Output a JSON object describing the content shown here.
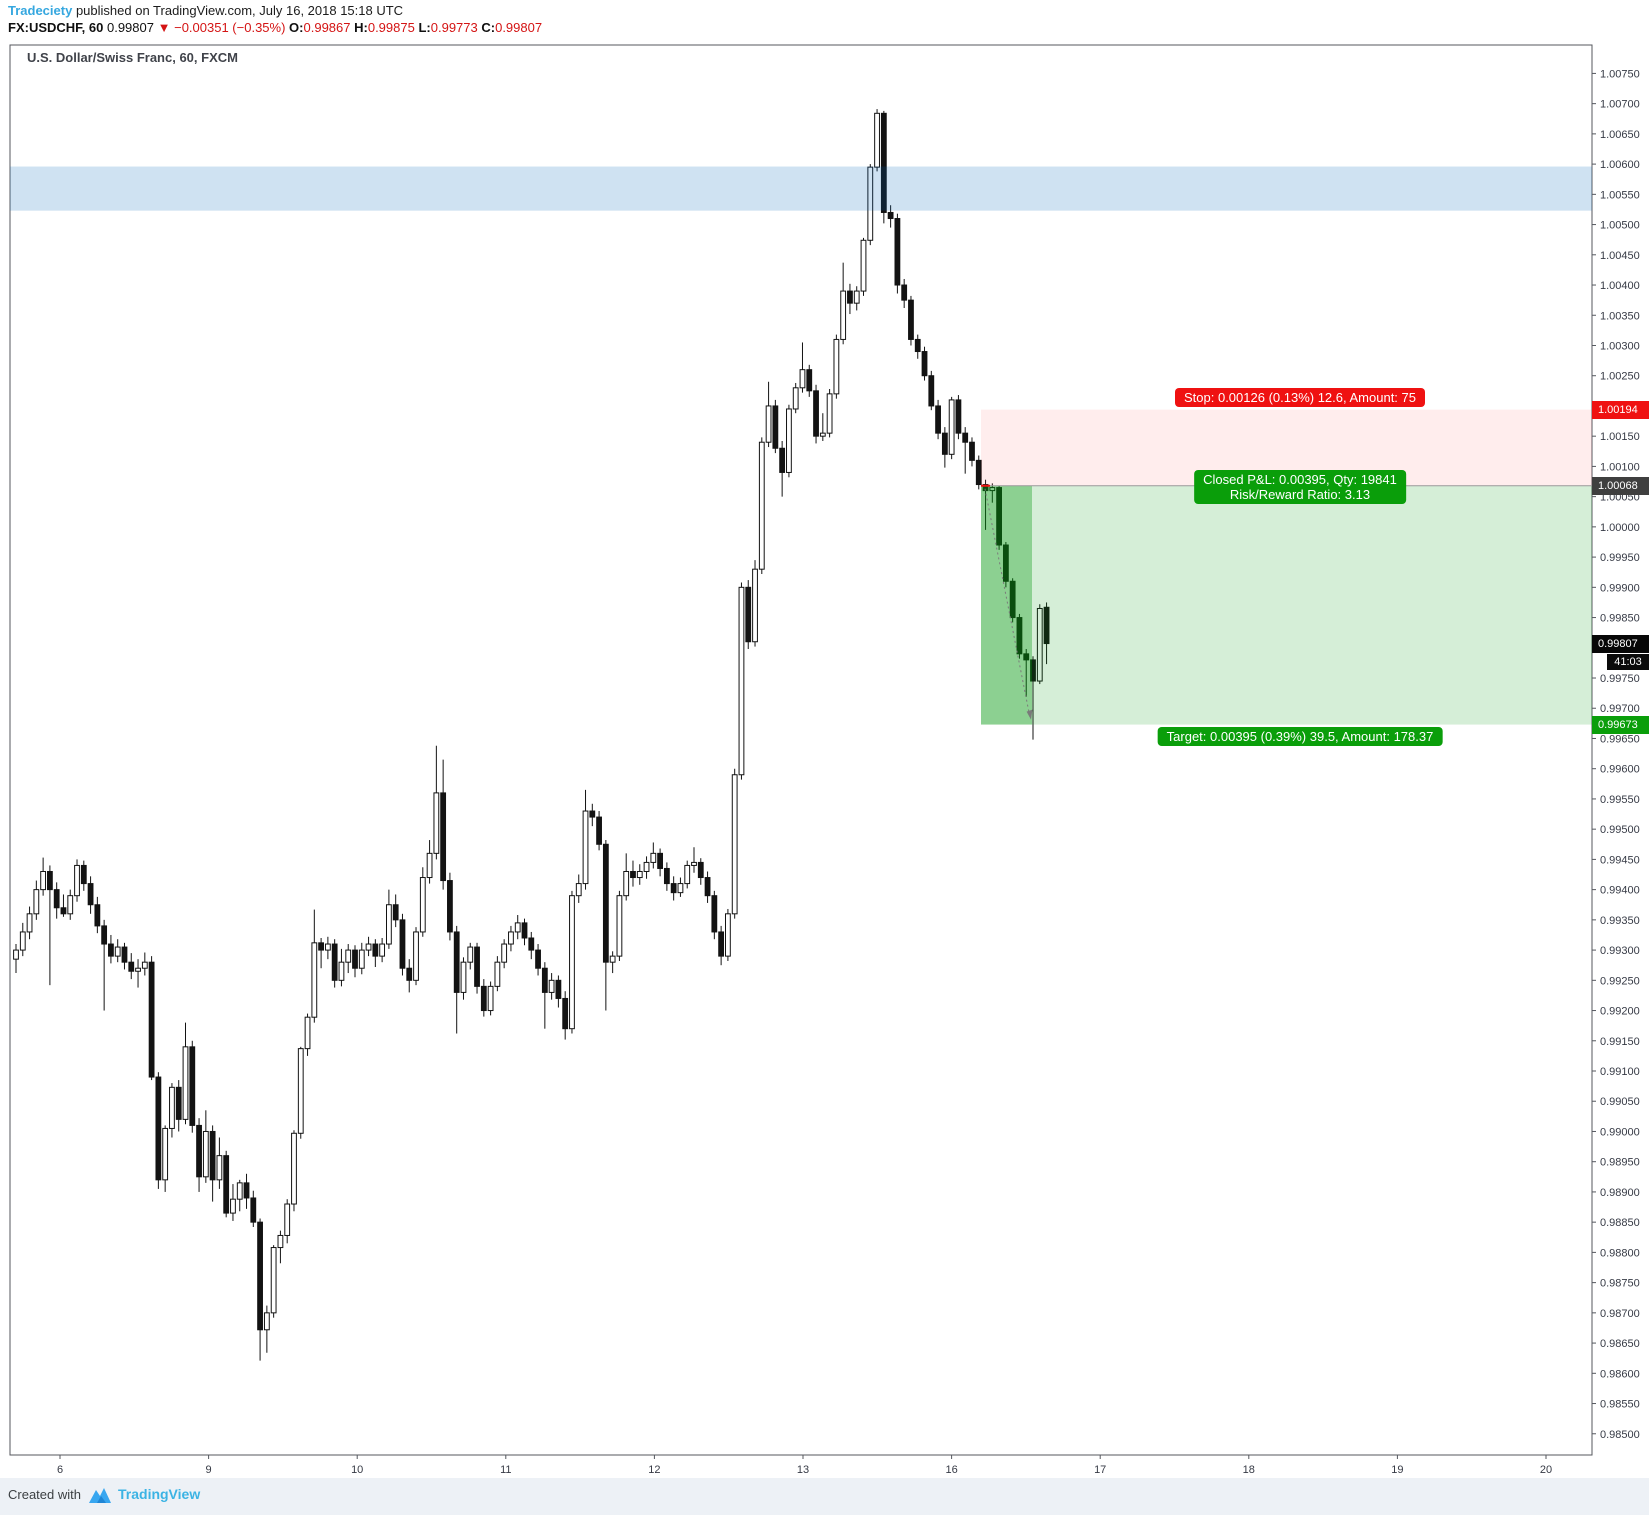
{
  "header": {
    "byline": {
      "author": "Tradeciety",
      "text": " published on TradingView.com, July 16, 2018 15:18 UTC"
    },
    "quote": {
      "symbol": "FX:USDCHF, 60",
      "last": "0.99807",
      "direction": "▼",
      "change": "−0.00351 (−0.35%)",
      "o_label": "O:",
      "o_value": "0.99867",
      "h_label": "H:",
      "h_value": "0.99875",
      "l_label": "L:",
      "l_value": "0.99773",
      "c_label": "C:",
      "c_value": "0.99807"
    }
  },
  "chart": {
    "title": "U.S. Dollar/Swiss Franc, 60, FXCM",
    "tags": {
      "stop": "1.00194",
      "entry": "1.00068",
      "last": "0.99807",
      "countdown": "41:03",
      "target": "0.99673"
    },
    "trade": {
      "stop_label": "Stop: 0.00126 (0.13%) 12.6, Amount: 75",
      "pnl_line1": "Closed P&L: 0.00395, Qty: 19841",
      "pnl_line2": "Risk/Reward Ratio: 3.13",
      "target_label": "Target: 0.00395 (0.39%) 39.5, Amount: 178.37",
      "stop_price": 1.00194,
      "entry_price": 1.00068,
      "target_price": 0.99673,
      "risk_reward_ratio": 3.13
    },
    "colors": {
      "stop_red": "#ef1111",
      "profit_green": "#0a9e0a",
      "stop_zone_fill": "rgba(255,60,60,0.09)",
      "profit_zone_light": "rgba(0,150,10,0.165)",
      "profit_zone_dark": "rgba(0,150,10,0.45)",
      "blue_band_fill": "rgba(0,102,187,0.19)",
      "up_candle": "#ffffff",
      "down_candle": "#131313",
      "axis_text": "#363a45"
    }
  },
  "footer": {
    "created_with": "Created with",
    "brand": "TradingView"
  },
  "chart_data": {
    "type": "candlestick",
    "title": "U.S. Dollar/Swiss Franc, 60, FXCM",
    "symbol": "USDCHF",
    "timeframe_minutes": 60,
    "y_axis": {
      "max": 1.0075,
      "min": 0.985,
      "step": 0.0005,
      "decimals": 5,
      "grid": false
    },
    "x_axis": {
      "day_labels": [
        "6",
        "9",
        "10",
        "11",
        "12",
        "13",
        "16",
        "17",
        "18",
        "19",
        "20"
      ]
    },
    "blue_band": {
      "top": 1.00596,
      "bottom": 1.00523
    },
    "trade_zones": {
      "stop_price": 1.00194,
      "entry_price": 1.00068,
      "target_price": 0.99673
    },
    "candles": [
      [
        0.99285,
        0.9931,
        0.99262,
        0.993
      ],
      [
        0.993,
        0.99345,
        0.9929,
        0.9933
      ],
      [
        0.9933,
        0.99372,
        0.99318,
        0.9936
      ],
      [
        0.9936,
        0.99415,
        0.9935,
        0.994
      ],
      [
        0.994,
        0.99453,
        0.9939,
        0.9943
      ],
      [
        0.9943,
        0.9944,
        0.99242,
        0.994
      ],
      [
        0.994,
        0.99412,
        0.99352,
        0.9937
      ],
      [
        0.9937,
        0.99392,
        0.99355,
        0.9936
      ],
      [
        0.9936,
        0.994,
        0.9935,
        0.9939
      ],
      [
        0.9939,
        0.9945,
        0.9938,
        0.9944
      ],
      [
        0.9944,
        0.99448,
        0.99398,
        0.9941
      ],
      [
        0.9941,
        0.99422,
        0.9936,
        0.99375
      ],
      [
        0.99375,
        0.99388,
        0.99328,
        0.9934
      ],
      [
        0.9934,
        0.9935,
        0.992,
        0.9931
      ],
      [
        0.9931,
        0.99325,
        0.99278,
        0.9929
      ],
      [
        0.9929,
        0.99318,
        0.9928,
        0.99305
      ],
      [
        0.99305,
        0.99312,
        0.99268,
        0.9928
      ],
      [
        0.9928,
        0.99295,
        0.99252,
        0.99265
      ],
      [
        0.99265,
        0.99285,
        0.99238,
        0.9927
      ],
      [
        0.9927,
        0.99296,
        0.99258,
        0.9928
      ],
      [
        0.9928,
        0.9929,
        0.99085,
        0.9909
      ],
      [
        0.9909,
        0.99098,
        0.98905,
        0.9892
      ],
      [
        0.9892,
        0.9901,
        0.989,
        0.99005
      ],
      [
        0.99005,
        0.9908,
        0.9899,
        0.99073
      ],
      [
        0.99073,
        0.99085,
        0.99,
        0.9902
      ],
      [
        0.9902,
        0.9918,
        0.99012,
        0.9914
      ],
      [
        0.9914,
        0.9915,
        0.98998,
        0.9901
      ],
      [
        0.9901,
        0.99022,
        0.989,
        0.98925
      ],
      [
        0.98925,
        0.99035,
        0.98915,
        0.99
      ],
      [
        0.99,
        0.9901,
        0.98884,
        0.9892
      ],
      [
        0.9892,
        0.9899,
        0.98905,
        0.9896
      ],
      [
        0.9896,
        0.98968,
        0.98858,
        0.98865
      ],
      [
        0.98865,
        0.98913,
        0.98852,
        0.98888
      ],
      [
        0.98888,
        0.9892,
        0.98868,
        0.98915
      ],
      [
        0.98915,
        0.9893,
        0.98872,
        0.9889
      ],
      [
        0.9889,
        0.98902,
        0.98842,
        0.9885
      ],
      [
        0.9885,
        0.98856,
        0.98621,
        0.98672
      ],
      [
        0.98672,
        0.98712,
        0.98634,
        0.987
      ],
      [
        0.987,
        0.98812,
        0.98692,
        0.98808
      ],
      [
        0.98808,
        0.98836,
        0.98782,
        0.98828
      ],
      [
        0.98828,
        0.98888,
        0.98815,
        0.9888
      ],
      [
        0.9888,
        0.99002,
        0.98868,
        0.98997
      ],
      [
        0.98997,
        0.9914,
        0.98988,
        0.99137
      ],
      [
        0.99137,
        0.99195,
        0.99125,
        0.99189
      ],
      [
        0.99189,
        0.99367,
        0.9918,
        0.99312
      ],
      [
        0.99312,
        0.9932,
        0.9927,
        0.993
      ],
      [
        0.993,
        0.99322,
        0.99285,
        0.9931
      ],
      [
        0.9931,
        0.99318,
        0.99238,
        0.9925
      ],
      [
        0.9925,
        0.99302,
        0.9924,
        0.9928
      ],
      [
        0.9928,
        0.9931,
        0.99262,
        0.993
      ],
      [
        0.993,
        0.99308,
        0.99255,
        0.9927
      ],
      [
        0.9927,
        0.99312,
        0.9926,
        0.993
      ],
      [
        0.993,
        0.99322,
        0.9929,
        0.9931
      ],
      [
        0.9931,
        0.99318,
        0.99272,
        0.9929
      ],
      [
        0.9929,
        0.9932,
        0.9928,
        0.9931
      ],
      [
        0.9931,
        0.994,
        0.99302,
        0.99375
      ],
      [
        0.99375,
        0.99392,
        0.99338,
        0.9935
      ],
      [
        0.9935,
        0.9936,
        0.99258,
        0.9927
      ],
      [
        0.9927,
        0.99285,
        0.9923,
        0.9925
      ],
      [
        0.9925,
        0.99338,
        0.99242,
        0.9933
      ],
      [
        0.9933,
        0.99437,
        0.99322,
        0.9942
      ],
      [
        0.9942,
        0.99482,
        0.9941,
        0.9946
      ],
      [
        0.9946,
        0.99638,
        0.9945,
        0.9956
      ],
      [
        0.9956,
        0.99615,
        0.994,
        0.99415
      ],
      [
        0.99415,
        0.99428,
        0.99316,
        0.9933
      ],
      [
        0.9933,
        0.9934,
        0.99162,
        0.9923
      ],
      [
        0.9923,
        0.99288,
        0.99218,
        0.9928
      ],
      [
        0.9928,
        0.99312,
        0.99268,
        0.99305
      ],
      [
        0.99305,
        0.99312,
        0.99228,
        0.9924
      ],
      [
        0.9924,
        0.99252,
        0.9919,
        0.992
      ],
      [
        0.992,
        0.99248,
        0.99192,
        0.9924
      ],
      [
        0.9924,
        0.9929,
        0.99232,
        0.9928
      ],
      [
        0.9928,
        0.99318,
        0.9927,
        0.9931
      ],
      [
        0.9931,
        0.9934,
        0.99298,
        0.9933
      ],
      [
        0.9933,
        0.99358,
        0.99318,
        0.99345
      ],
      [
        0.99345,
        0.99352,
        0.99308,
        0.9932
      ],
      [
        0.9932,
        0.9933,
        0.99285,
        0.993
      ],
      [
        0.993,
        0.9931,
        0.99258,
        0.9927
      ],
      [
        0.9927,
        0.9928,
        0.9917,
        0.9923
      ],
      [
        0.9923,
        0.99262,
        0.99218,
        0.9925
      ],
      [
        0.9925,
        0.99258,
        0.99205,
        0.9922
      ],
      [
        0.9922,
        0.99232,
        0.99152,
        0.9917
      ],
      [
        0.9917,
        0.99398,
        0.99162,
        0.9939
      ],
      [
        0.9939,
        0.99425,
        0.99378,
        0.9941
      ],
      [
        0.9941,
        0.99565,
        0.994,
        0.9953
      ],
      [
        0.9953,
        0.99542,
        0.99505,
        0.9952
      ],
      [
        0.9952,
        0.9953,
        0.99465,
        0.99475
      ],
      [
        0.99475,
        0.99482,
        0.992,
        0.9928
      ],
      [
        0.9928,
        0.99298,
        0.99262,
        0.9929
      ],
      [
        0.9929,
        0.99398,
        0.99282,
        0.9939
      ],
      [
        0.9939,
        0.9946,
        0.99382,
        0.9943
      ],
      [
        0.9943,
        0.99448,
        0.99405,
        0.9942
      ],
      [
        0.9942,
        0.99442,
        0.99408,
        0.9943
      ],
      [
        0.9943,
        0.99455,
        0.99418,
        0.99445
      ],
      [
        0.99445,
        0.99478,
        0.99435,
        0.9946
      ],
      [
        0.9946,
        0.99468,
        0.99422,
        0.99435
      ],
      [
        0.99435,
        0.99445,
        0.99398,
        0.9941
      ],
      [
        0.9941,
        0.99422,
        0.99382,
        0.99395
      ],
      [
        0.99395,
        0.9942,
        0.99388,
        0.9941
      ],
      [
        0.9941,
        0.99448,
        0.99402,
        0.9944
      ],
      [
        0.9944,
        0.9947,
        0.99428,
        0.99445
      ],
      [
        0.99445,
        0.99452,
        0.99408,
        0.9942
      ],
      [
        0.9942,
        0.9943,
        0.99378,
        0.9939
      ],
      [
        0.9939,
        0.99398,
        0.99318,
        0.9933
      ],
      [
        0.9933,
        0.9934,
        0.99275,
        0.9929
      ],
      [
        0.9929,
        0.99368,
        0.99282,
        0.9936
      ],
      [
        0.9936,
        0.996,
        0.99352,
        0.9959
      ],
      [
        0.9959,
        0.99908,
        0.99582,
        0.999
      ],
      [
        0.999,
        0.99912,
        0.99798,
        0.9981
      ],
      [
        0.9981,
        0.99945,
        0.99802,
        0.9993
      ],
      [
        0.9993,
        1.00148,
        0.99922,
        1.0014
      ],
      [
        1.0014,
        1.0024,
        1.00132,
        1.002
      ],
      [
        1.002,
        1.0021,
        1.00122,
        1.0013
      ],
      [
        1.0013,
        1.00142,
        1.0005,
        1.0009
      ],
      [
        1.0009,
        1.00202,
        1.00082,
        1.00195
      ],
      [
        1.00195,
        1.00238,
        1.00188,
        1.0023
      ],
      [
        1.0023,
        1.00305,
        1.00222,
        1.0026
      ],
      [
        1.0026,
        1.00268,
        1.00215,
        1.00225
      ],
      [
        1.00225,
        1.00235,
        1.00138,
        1.0015
      ],
      [
        1.0015,
        1.00188,
        1.00142,
        1.00155
      ],
      [
        1.00155,
        1.00228,
        1.00148,
        1.0022
      ],
      [
        1.0022,
        1.00318,
        1.00212,
        1.0031
      ],
      [
        1.0031,
        1.00437,
        1.00302,
        1.0039
      ],
      [
        1.0039,
        1.00402,
        1.00352,
        1.0037
      ],
      [
        1.0037,
        1.00398,
        1.00358,
        1.0039
      ],
      [
        1.0039,
        1.00478,
        1.00382,
        1.00474
      ],
      [
        1.00474,
        1.006,
        1.00466,
        1.00595
      ],
      [
        1.00595,
        1.00691,
        1.00588,
        1.00684
      ],
      [
        1.00684,
        1.00688,
        1.00502,
        1.0052
      ],
      [
        1.0052,
        1.00532,
        1.00495,
        1.0051
      ],
      [
        1.0051,
        1.00518,
        1.00386,
        1.004
      ],
      [
        1.004,
        1.0041,
        1.00362,
        1.00375
      ],
      [
        1.00375,
        1.00382,
        1.003,
        1.0031
      ],
      [
        1.0031,
        1.00318,
        1.00278,
        1.0029
      ],
      [
        1.0029,
        1.00298,
        1.00242,
        1.0025
      ],
      [
        1.0025,
        1.00258,
        1.00193,
        1.002
      ],
      [
        1.002,
        1.0021,
        1.00145,
        1.00155
      ],
      [
        1.00155,
        1.00165,
        1.00098,
        1.0012
      ],
      [
        1.0012,
        1.00215,
        1.00112,
        1.0021
      ],
      [
        1.0021,
        1.00218,
        1.00145,
        1.00155
      ],
      [
        1.00155,
        1.00165,
        1.00088,
        1.0014
      ],
      [
        1.0014,
        1.00148,
        1.001,
        1.0011
      ],
      [
        1.0011,
        1.00118,
        1.00062,
        1.0007
      ],
      [
        1.0007,
        1.00078,
        0.99995,
        1.0006
      ],
      [
        1.0006,
        1.00072,
        1.0004,
        1.00065
      ],
      [
        1.00065,
        1.00068,
        0.99962,
        0.9997
      ],
      [
        0.9997,
        0.99975,
        0.999,
        0.9991
      ],
      [
        0.9991,
        0.99915,
        0.99842,
        0.9985
      ],
      [
        0.9985,
        0.99856,
        0.99782,
        0.9979
      ],
      [
        0.9979,
        0.99798,
        0.99719,
        0.9978
      ],
      [
        0.9978,
        0.99786,
        0.99648,
        0.99745
      ],
      [
        0.99745,
        0.99872,
        0.9974,
        0.99865
      ],
      [
        0.99867,
        0.99875,
        0.99773,
        0.99807
      ]
    ]
  }
}
